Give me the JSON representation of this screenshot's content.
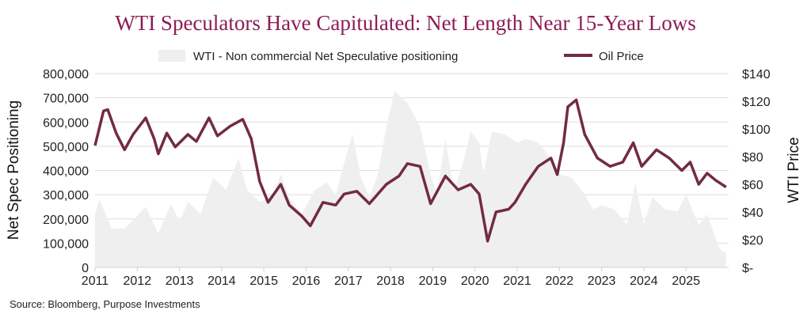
{
  "chart_data": {
    "type": "line",
    "title": "WTI Speculators Have Capitulated: Net Length Near 15-Year Lows",
    "source": "Source: Bloomberg, Purpose Investments",
    "ylabel": "Net Spec Positioning",
    "y2label": "WTI Price",
    "xlim": [
      2011,
      2025.95
    ],
    "ylim": [
      0,
      800000
    ],
    "y2lim": [
      0,
      140
    ],
    "x_ticks": [
      "2011",
      "2012",
      "2013",
      "2014",
      "2015",
      "2016",
      "2017",
      "2018",
      "2019",
      "2020",
      "2021",
      "2022",
      "2023",
      "2024",
      "2025"
    ],
    "y_ticks": [
      "0",
      "100,000",
      "200,000",
      "300,000",
      "400,000",
      "500,000",
      "600,000",
      "700,000",
      "800,000"
    ],
    "y2_ticks": [
      "$-",
      "$20",
      "$40",
      "$60",
      "$80",
      "$100",
      "$120",
      "$140"
    ],
    "grid": true,
    "legend": "top",
    "colors": {
      "area": "#f0efef",
      "line": "#722a47",
      "title": "#8c1d55",
      "grid": "#dddddd"
    },
    "series": [
      {
        "name": "WTI - Non commercial Net Speculative positioning",
        "type": "area",
        "axis": "left",
        "x": [
          2011.0,
          2011.1,
          2011.4,
          2011.7,
          2012.2,
          2012.5,
          2012.8,
          2013.0,
          2013.2,
          2013.5,
          2013.8,
          2014.1,
          2014.4,
          2014.6,
          2014.9,
          2015.2,
          2015.4,
          2015.6,
          2015.9,
          2016.2,
          2016.5,
          2016.7,
          2016.9,
          2017.1,
          2017.3,
          2017.5,
          2017.7,
          2017.9,
          2018.1,
          2018.2,
          2018.4,
          2018.7,
          2018.95,
          2019.1,
          2019.3,
          2019.5,
          2019.7,
          2019.9,
          2020.1,
          2020.2,
          2020.4,
          2020.7,
          2021.0,
          2021.2,
          2021.5,
          2021.8,
          2022.0,
          2022.3,
          2022.6,
          2022.8,
          2023.0,
          2023.3,
          2023.6,
          2023.8,
          2024.0,
          2024.2,
          2024.5,
          2024.8,
          2025.0,
          2025.3,
          2025.5,
          2025.8,
          2025.95
        ],
        "values": [
          220000,
          280000,
          160000,
          160000,
          250000,
          140000,
          260000,
          190000,
          270000,
          220000,
          370000,
          320000,
          450000,
          320000,
          270000,
          290000,
          385000,
          290000,
          220000,
          320000,
          350000,
          300000,
          430000,
          550000,
          370000,
          290000,
          385000,
          580000,
          730000,
          710000,
          680000,
          580000,
          385000,
          300000,
          530000,
          320000,
          420000,
          560000,
          515000,
          385000,
          560000,
          550000,
          515000,
          530000,
          515000,
          450000,
          385000,
          370000,
          300000,
          240000,
          255000,
          240000,
          175000,
          350000,
          175000,
          290000,
          240000,
          230000,
          300000,
          175000,
          220000,
          75000,
          60000
        ]
      },
      {
        "name": "Oil Price",
        "type": "line",
        "axis": "right",
        "x": [
          2011.0,
          2011.2,
          2011.3,
          2011.5,
          2011.7,
          2011.9,
          2012.2,
          2012.4,
          2012.5,
          2012.7,
          2012.9,
          2013.2,
          2013.4,
          2013.7,
          2013.9,
          2014.2,
          2014.5,
          2014.7,
          2014.9,
          2015.1,
          2015.4,
          2015.6,
          2015.9,
          2016.1,
          2016.4,
          2016.7,
          2016.9,
          2017.2,
          2017.5,
          2017.9,
          2018.2,
          2018.4,
          2018.7,
          2018.95,
          2019.3,
          2019.6,
          2019.9,
          2020.1,
          2020.3,
          2020.5,
          2020.8,
          2020.95,
          2021.2,
          2021.5,
          2021.8,
          2021.95,
          2022.1,
          2022.2,
          2022.4,
          2022.6,
          2022.9,
          2023.2,
          2023.5,
          2023.75,
          2023.95,
          2024.3,
          2024.6,
          2024.9,
          2025.1,
          2025.3,
          2025.5,
          2025.7,
          2025.95
        ],
        "values": [
          88,
          113,
          114,
          97,
          85,
          96,
          108,
          93,
          82,
          97,
          87,
          96,
          91,
          108,
          95,
          102,
          107,
          93,
          62,
          47,
          60,
          45,
          37,
          30,
          47,
          45,
          53,
          55,
          46,
          60,
          66,
          75,
          73,
          46,
          66,
          56,
          60,
          53,
          19,
          40,
          42,
          47,
          60,
          73,
          79,
          67,
          90,
          116,
          121,
          96,
          79,
          73,
          76,
          90,
          73,
          85,
          79,
          70,
          76,
          60,
          68,
          63,
          58
        ]
      }
    ]
  }
}
